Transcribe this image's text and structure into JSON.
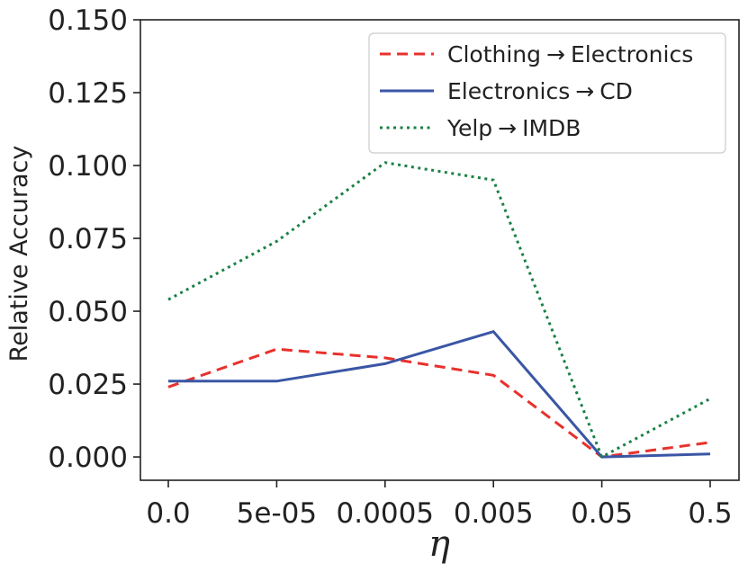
{
  "chart_data": {
    "type": "line",
    "title": "",
    "xlabel": "η",
    "ylabel": "Relative Accuracy",
    "categories": [
      "0.0",
      "5e-05",
      "0.0005",
      "0.005",
      "0.05",
      "0.5"
    ],
    "ylim": [
      -0.008,
      0.15
    ],
    "yticks": [
      0.0,
      0.025,
      0.05,
      0.075,
      0.1,
      0.125,
      0.15
    ],
    "ytick_labels": [
      "0.000",
      "0.025",
      "0.050",
      "0.075",
      "0.100",
      "0.125",
      "0.150"
    ],
    "grid": false,
    "legend_position": "top-right",
    "series": [
      {
        "name": "Clothing → Electronics",
        "legend": {
          "a": "Clothing",
          "b": "Electronics"
        },
        "color": "#e8312c",
        "style": "dashed",
        "values": [
          0.024,
          0.037,
          0.034,
          0.028,
          0.0,
          0.005
        ]
      },
      {
        "name": "Electronics → CD",
        "legend": {
          "a": "Electronics",
          "b": "CD"
        },
        "color": "#3a56a5",
        "style": "solid",
        "values": [
          0.026,
          0.026,
          0.032,
          0.043,
          0.0,
          0.001
        ]
      },
      {
        "name": "Yelp → IMDB",
        "legend": {
          "a": "Yelp",
          "b": "IMDB"
        },
        "color": "#1a8146",
        "style": "dotted",
        "values": [
          0.054,
          0.074,
          0.101,
          0.095,
          0.0,
          0.02
        ]
      }
    ]
  }
}
